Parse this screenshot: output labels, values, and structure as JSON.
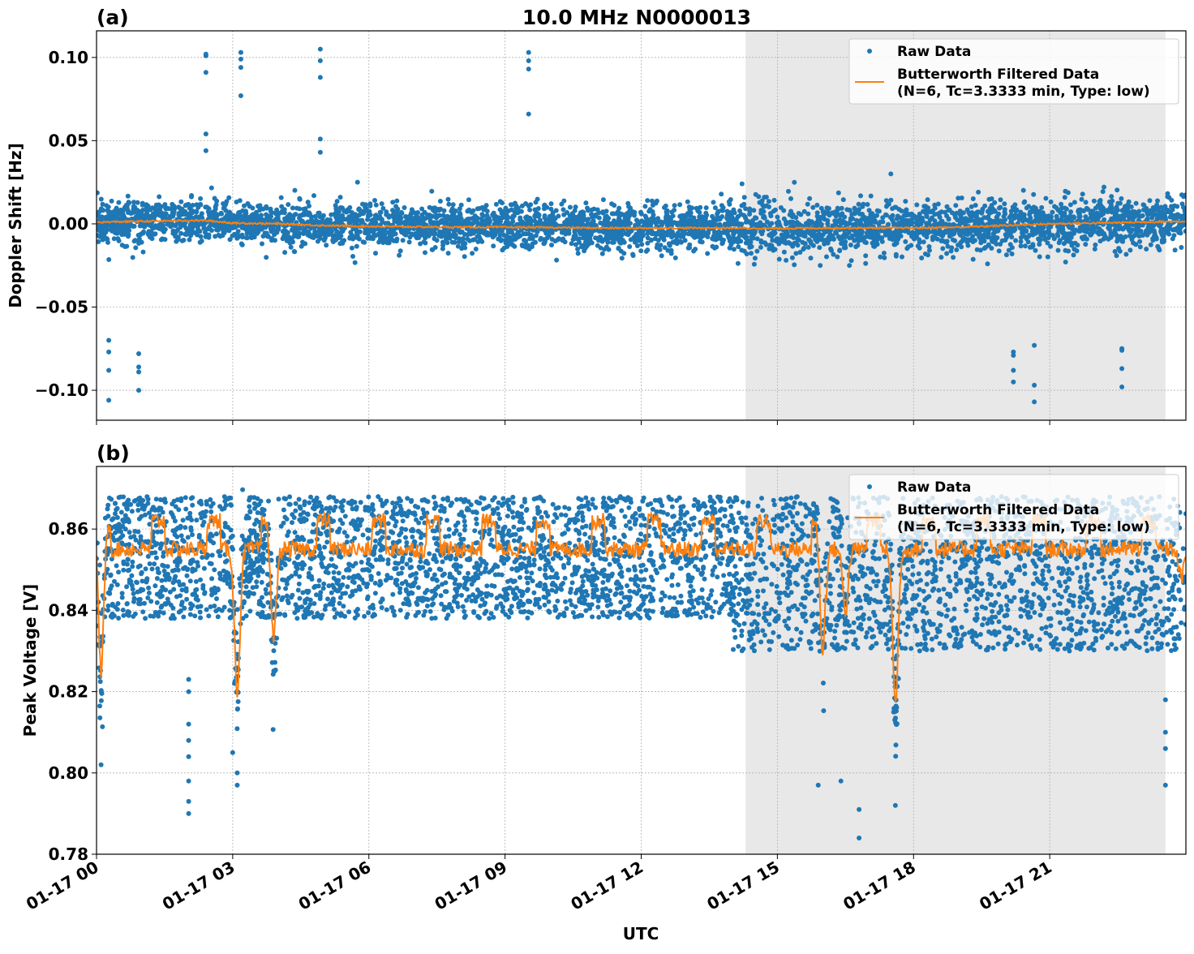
{
  "title": "10.0 MHz N0000013",
  "colors": {
    "raw": "#1f77b4",
    "filtered": "#ff7f0e",
    "shade": "#e8e8e8",
    "grid": "#b0b0b0"
  },
  "chart_data": [
    {
      "panel_label": "(a)",
      "type": "scatter",
      "ylabel": "Doppler Shift [Hz]",
      "xlabel": "",
      "x_unit": "hours UTC since 01-17 00",
      "xlim": [
        0,
        24
      ],
      "ylim": [
        -0.118,
        0.116
      ],
      "xticks": [
        "01-17 00",
        "01-17 03",
        "01-17 06",
        "01-17 09",
        "01-17 12",
        "01-17 15",
        "01-17 18",
        "01-17 21"
      ],
      "xtick_values": [
        0,
        3,
        6,
        9,
        12,
        15,
        18,
        21
      ],
      "yticks": [
        "−0.10",
        "−0.05",
        "0.00",
        "0.05",
        "0.10"
      ],
      "ytick_values": [
        -0.1,
        -0.05,
        0.0,
        0.05,
        0.1
      ],
      "grid": true,
      "shaded_span": [
        14.3,
        23.55
      ],
      "legend": {
        "placement": "upper right",
        "entries": [
          "Raw Data",
          "Butterworth Filtered Data",
          "(N=6, Tc=3.3333 min, Type: low)"
        ]
      },
      "raw_spread": {
        "std": 0.0065,
        "clip": 0.025
      },
      "filtered": {
        "x": [
          0,
          1,
          2,
          2.4,
          3,
          4,
          5,
          6,
          7,
          8,
          9,
          10,
          11,
          12,
          13,
          14,
          15,
          16,
          17,
          18,
          19,
          20,
          21,
          22,
          23,
          24
        ],
        "y": [
          0.001,
          0.0015,
          0.002,
          0.002,
          0.0005,
          0.0,
          -0.001,
          -0.0015,
          -0.0018,
          -0.002,
          -0.002,
          -0.0022,
          -0.0025,
          -0.0025,
          -0.0025,
          -0.0025,
          -0.0028,
          -0.0025,
          -0.0025,
          -0.0025,
          -0.002,
          -0.001,
          0.0,
          0.0005,
          0.001,
          0.0015
        ]
      },
      "outliers": [
        [
          0.27,
          -0.07
        ],
        [
          0.27,
          -0.077
        ],
        [
          0.27,
          -0.088
        ],
        [
          0.27,
          -0.106
        ],
        [
          0.93,
          -0.078
        ],
        [
          0.93,
          -0.086
        ],
        [
          0.93,
          -0.089
        ],
        [
          0.93,
          -0.1
        ],
        [
          2.41,
          0.102
        ],
        [
          2.41,
          0.101
        ],
        [
          2.41,
          0.091
        ],
        [
          2.41,
          0.054
        ],
        [
          2.41,
          0.044
        ],
        [
          3.18,
          0.103
        ],
        [
          3.18,
          0.099
        ],
        [
          3.18,
          0.094
        ],
        [
          3.18,
          0.077
        ],
        [
          4.93,
          0.105
        ],
        [
          4.93,
          0.098
        ],
        [
          4.93,
          0.088
        ],
        [
          4.93,
          0.051
        ],
        [
          4.93,
          0.043
        ],
        [
          9.52,
          0.103
        ],
        [
          9.52,
          0.098
        ],
        [
          9.52,
          0.093
        ],
        [
          9.52,
          0.066
        ],
        [
          5.75,
          0.025
        ],
        [
          17.5,
          0.03
        ],
        [
          20.2,
          -0.077
        ],
        [
          20.2,
          -0.079
        ],
        [
          20.2,
          -0.088
        ],
        [
          20.2,
          -0.095
        ],
        [
          20.66,
          -0.073
        ],
        [
          20.66,
          -0.097
        ],
        [
          20.66,
          -0.107
        ],
        [
          22.59,
          -0.075
        ],
        [
          22.59,
          -0.076
        ],
        [
          22.59,
          -0.087
        ],
        [
          22.59,
          -0.098
        ]
      ]
    },
    {
      "panel_label": "(b)",
      "type": "scatter",
      "ylabel": "Peak Voltage [V]",
      "xlabel": "UTC",
      "xlim": [
        0,
        24
      ],
      "ylim": [
        0.78,
        0.8754
      ],
      "xticks": [
        "01-17 00",
        "01-17 03",
        "01-17 06",
        "01-17 09",
        "01-17 12",
        "01-17 15",
        "01-17 18",
        "01-17 21"
      ],
      "xtick_values": [
        0,
        3,
        6,
        9,
        12,
        15,
        18,
        21
      ],
      "yticks": [
        "0.78",
        "0.80",
        "0.82",
        "0.84",
        "0.86"
      ],
      "ytick_values": [
        0.78,
        0.8,
        0.82,
        0.84,
        0.86
      ],
      "grid": true,
      "shaded_span": [
        14.3,
        23.55
      ],
      "legend": {
        "placement": "upper right",
        "entries": [
          "Raw Data",
          "Butterworth Filtered Data",
          "(N=6, Tc=3.3333 min, Type: low)"
        ]
      },
      "raw_band": {
        "before_14h": [
          0.838,
          0.868
        ],
        "after_14h": [
          0.83,
          0.868
        ]
      },
      "filtered": {
        "base": 0.855,
        "high": 0.862,
        "dips": [
          [
            0.1,
            0.825
          ],
          [
            3.1,
            0.82
          ],
          [
            3.9,
            0.833
          ],
          [
            16.0,
            0.83
          ],
          [
            16.5,
            0.84
          ],
          [
            17.6,
            0.817
          ],
          [
            23.9,
            0.848
          ]
        ]
      },
      "outliers": [
        [
          2.03,
          0.823
        ],
        [
          2.03,
          0.82
        ],
        [
          2.03,
          0.812
        ],
        [
          2.03,
          0.808
        ],
        [
          2.03,
          0.804
        ],
        [
          2.03,
          0.798
        ],
        [
          2.03,
          0.793
        ],
        [
          2.03,
          0.79
        ],
        [
          3.1,
          0.8
        ],
        [
          3.1,
          0.797
        ],
        [
          3.0,
          0.805
        ],
        [
          15.9,
          0.797
        ],
        [
          16.4,
          0.798
        ],
        [
          16.8,
          0.791
        ],
        [
          16.8,
          0.784
        ],
        [
          17.6,
          0.792
        ],
        [
          23.55,
          0.818
        ],
        [
          23.55,
          0.81
        ],
        [
          23.55,
          0.806
        ],
        [
          23.55,
          0.797
        ],
        [
          0.1,
          0.802
        ]
      ]
    }
  ]
}
